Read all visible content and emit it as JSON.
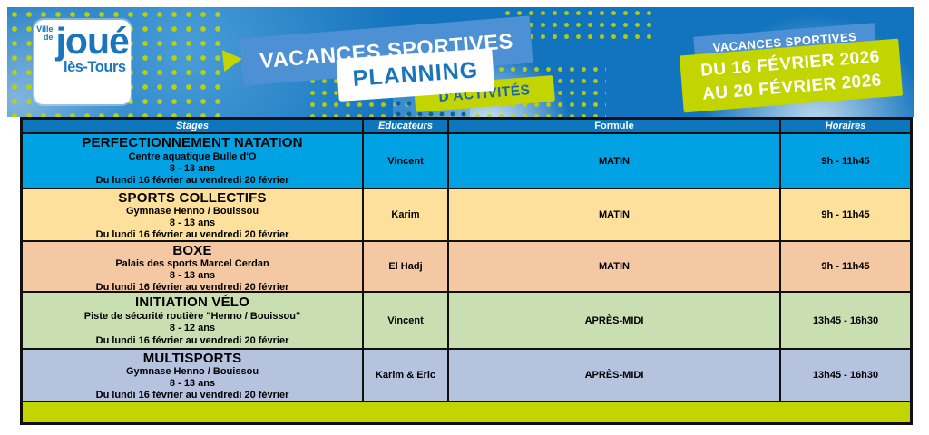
{
  "logo": {
    "ville": "Ville",
    "de": "de",
    "name": "joué",
    "suffix": "lès-Tours"
  },
  "banner": {
    "title": "VACANCES SPORTIVES",
    "planning": "PLANNING",
    "activites": "D'ACTIVITÉS"
  },
  "date_badge": {
    "label": "VACANCES SPORTIVES",
    "line1": "DU 16 FÉVRIER 2026",
    "line2": "AU 20 FÉVRIER 2026"
  },
  "table": {
    "headers": {
      "stages": "Stages",
      "educateurs": "Educateurs",
      "formule": "Formule",
      "horaires": "Horaires"
    },
    "rows": [
      {
        "title": "PERFECTIONNEMENT NATATION",
        "location": "Centre aquatique Bulle d'O",
        "ages": "8 - 13 ans",
        "period": "Du lundi 16 février au vendredi 20 février",
        "educateur": "Vincent",
        "formule": "MATIN",
        "horaires": "9h - 11h45",
        "color": "#00A2E4"
      },
      {
        "title": "SPORTS COLLECTIFS",
        "location": "Gymnase Henno / Bouissou",
        "ages": "8 - 13 ans",
        "period": "Du lundi 16 février au vendredi 20 février",
        "educateur": "Karim",
        "formule": "MATIN",
        "horaires": "9h - 11h45",
        "color": "#FDE09B"
      },
      {
        "title": "BOXE",
        "location": "Palais des sports Marcel Cerdan",
        "ages": "8 - 13 ans",
        "period": "Du lundi 16 février au vendredi 20 février",
        "educateur": "El Hadj",
        "formule": "MATIN",
        "horaires": "9h - 11h45",
        "color": "#F4C8A3"
      },
      {
        "title": "INITIATION VÉLO",
        "location": "Piste de sécurité routière \"Henno / Bouissou\"",
        "ages": "8 - 12 ans",
        "period": "Du lundi 16 février au vendredi 20 février",
        "educateur": "Vincent",
        "formule": "APRÈS-MIDI",
        "horaires": "13h45 - 16h30",
        "color": "#C9DFB2"
      },
      {
        "title": "MULTISPORTS",
        "location": "Gymnase Henno / Bouissou",
        "ages": "8 - 13 ans",
        "period": "Du lundi 16 février au vendredi 20 février",
        "educateur": "Karim & Eric",
        "formule": "APRÈS-MIDI",
        "horaires": "13h45 - 16h30",
        "color": "#B5C3DF"
      }
    ]
  },
  "colors": {
    "header_bg": "#0E76BC",
    "border": "#101010",
    "banner_blue": "#1273BE",
    "ribbon_blue": "#4E90D4",
    "chartreuse": "#C2D500",
    "logo_blue": "#1B75BC",
    "bottom_bar": "#C2D500"
  }
}
